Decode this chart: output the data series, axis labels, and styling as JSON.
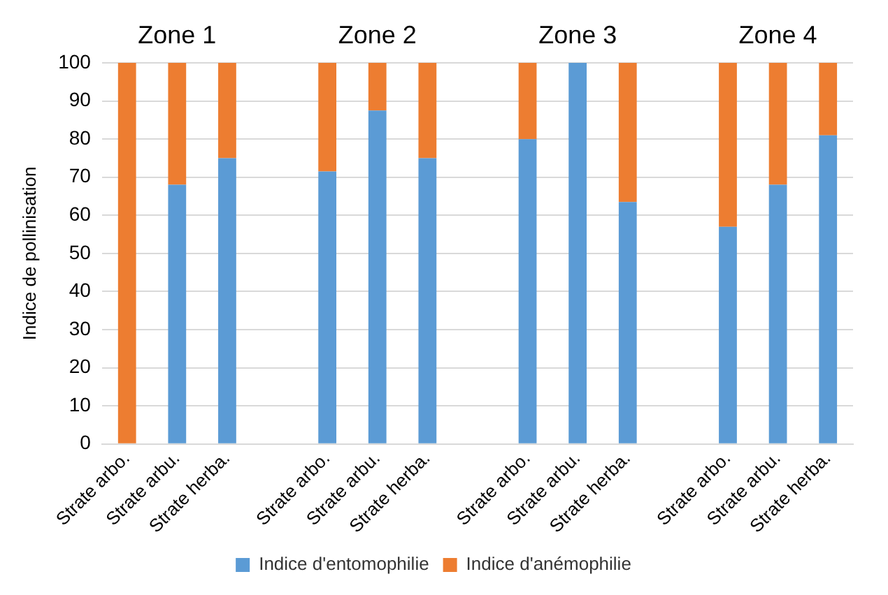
{
  "chart_data": {
    "type": "bar",
    "stacked": true,
    "ylabel": "Indice de pollinisation",
    "categories": [
      "Strate arbo.",
      "Strate arbu.",
      "Strate herba.",
      null,
      "Strate arbo.",
      "Strate arbu.",
      "Strate herba.",
      null,
      "Strate arbo.",
      "Strate arbu.",
      "Strate herba.",
      null,
      "Strate arbo.",
      "Strate arbu.",
      "Strate herba."
    ],
    "series": [
      {
        "name": "Indice d'entomophilie",
        "color": "#5b9bd5",
        "values": [
          0,
          68,
          75,
          null,
          71.5,
          87.5,
          75,
          null,
          80,
          100,
          63.5,
          null,
          57,
          68,
          81
        ]
      },
      {
        "name": "Indice d'anémophilie",
        "color": "#ed7d31",
        "values": [
          100,
          32,
          25,
          null,
          28.5,
          12.5,
          25,
          null,
          20,
          0,
          36.5,
          null,
          43,
          32,
          19
        ]
      }
    ],
    "ylim": [
      0,
      100
    ],
    "yticks": [
      0,
      10,
      20,
      30,
      40,
      50,
      60,
      70,
      80,
      90,
      100
    ],
    "grid": "y",
    "legend": "bottom",
    "annotations": [
      "Zone 1",
      "Zone 2",
      "Zone 3",
      "Zone 4"
    ]
  }
}
